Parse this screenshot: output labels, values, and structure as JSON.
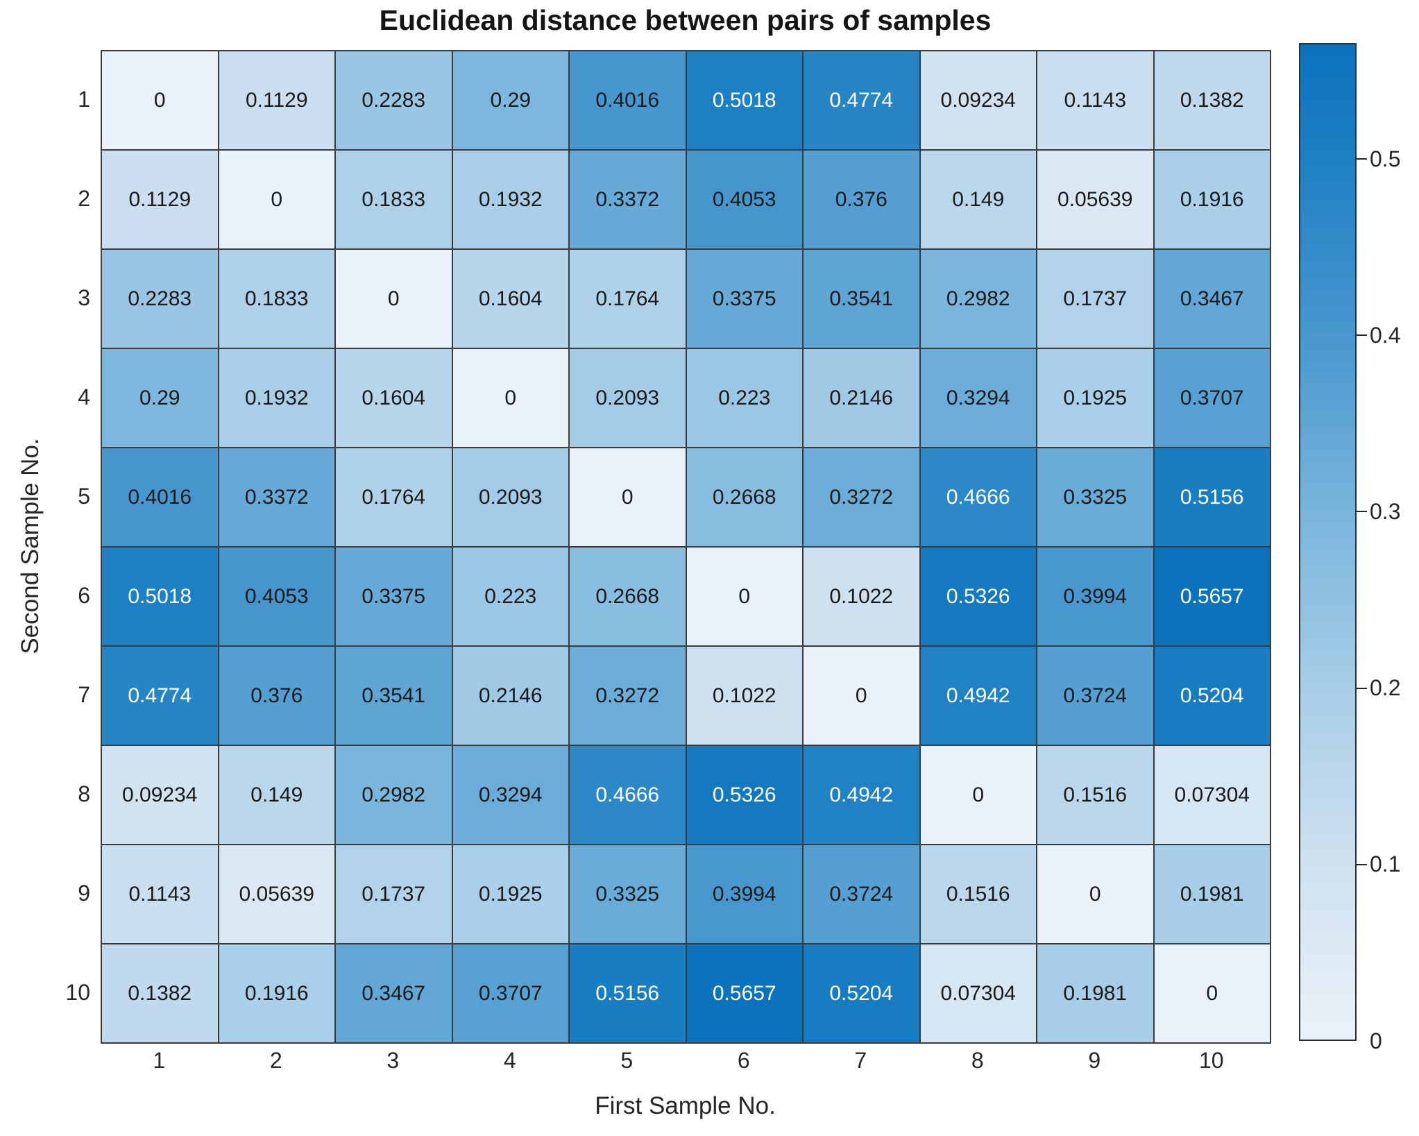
{
  "chart_data": {
    "type": "heatmap",
    "title": "Euclidean distance between pairs of samples",
    "xlabel": "First Sample No.",
    "ylabel": "Second Sample No.",
    "x_categories": [
      "1",
      "2",
      "3",
      "4",
      "5",
      "6",
      "7",
      "8",
      "9",
      "10"
    ],
    "y_categories": [
      "1",
      "2",
      "3",
      "4",
      "5",
      "6",
      "7",
      "8",
      "9",
      "10"
    ],
    "values": [
      [
        0,
        0.1129,
        0.2283,
        0.29,
        0.4016,
        0.5018,
        0.4774,
        0.09234,
        0.1143,
        0.1382
      ],
      [
        0.1129,
        0,
        0.1833,
        0.1932,
        0.3372,
        0.4053,
        0.376,
        0.149,
        0.05639,
        0.1916
      ],
      [
        0.2283,
        0.1833,
        0,
        0.1604,
        0.1764,
        0.3375,
        0.3541,
        0.2982,
        0.1737,
        0.3467
      ],
      [
        0.29,
        0.1932,
        0.1604,
        0,
        0.2093,
        0.223,
        0.2146,
        0.3294,
        0.1925,
        0.3707
      ],
      [
        0.4016,
        0.3372,
        0.1764,
        0.2093,
        0,
        0.2668,
        0.3272,
        0.4666,
        0.3325,
        0.5156
      ],
      [
        0.5018,
        0.4053,
        0.3375,
        0.223,
        0.2668,
        0,
        0.1022,
        0.5326,
        0.3994,
        0.5657
      ],
      [
        0.4774,
        0.376,
        0.3541,
        0.2146,
        0.3272,
        0.1022,
        0,
        0.4942,
        0.3724,
        0.5204
      ],
      [
        0.09234,
        0.149,
        0.2982,
        0.3294,
        0.4666,
        0.5326,
        0.4942,
        0,
        0.1516,
        0.07304
      ],
      [
        0.1143,
        0.05639,
        0.1737,
        0.1925,
        0.3325,
        0.3994,
        0.3724,
        0.1516,
        0,
        0.1981
      ],
      [
        0.1382,
        0.1916,
        0.3467,
        0.3707,
        0.5156,
        0.5657,
        0.5204,
        0.07304,
        0.1981,
        0
      ]
    ],
    "cell_labels": [
      [
        "0",
        "0.1129",
        "0.2283",
        "0.29",
        "0.4016",
        "0.5018",
        "0.4774",
        "0.09234",
        "0.1143",
        "0.1382"
      ],
      [
        "0.1129",
        "0",
        "0.1833",
        "0.1932",
        "0.3372",
        "0.4053",
        "0.376",
        "0.149",
        "0.05639",
        "0.1916"
      ],
      [
        "0.2283",
        "0.1833",
        "0",
        "0.1604",
        "0.1764",
        "0.3375",
        "0.3541",
        "0.2982",
        "0.1737",
        "0.3467"
      ],
      [
        "0.29",
        "0.1932",
        "0.1604",
        "0",
        "0.2093",
        "0.223",
        "0.2146",
        "0.3294",
        "0.1925",
        "0.3707"
      ],
      [
        "0.4016",
        "0.3372",
        "0.1764",
        "0.2093",
        "0",
        "0.2668",
        "0.3272",
        "0.4666",
        "0.3325",
        "0.5156"
      ],
      [
        "0.5018",
        "0.4053",
        "0.3375",
        "0.223",
        "0.2668",
        "0",
        "0.1022",
        "0.5326",
        "0.3994",
        "0.5657"
      ],
      [
        "0.4774",
        "0.376",
        "0.3541",
        "0.2146",
        "0.3272",
        "0.1022",
        "0",
        "0.4942",
        "0.3724",
        "0.5204"
      ],
      [
        "0.09234",
        "0.149",
        "0.2982",
        "0.3294",
        "0.4666",
        "0.5326",
        "0.4942",
        "0",
        "0.1516",
        "0.07304"
      ],
      [
        "0.1143",
        "0.05639",
        "0.1737",
        "0.1925",
        "0.3325",
        "0.3994",
        "0.3724",
        "0.1516",
        "0",
        "0.1981"
      ],
      [
        "0.1382",
        "0.1916",
        "0.3467",
        "0.3707",
        "0.5156",
        "0.5657",
        "0.5204",
        "0.07304",
        "0.1981",
        "0"
      ]
    ],
    "colorbar": {
      "position": "right",
      "vmin": 0,
      "vmax": 0.5657,
      "ticks": [
        {
          "value": 0,
          "label": "0"
        },
        {
          "value": 0.1,
          "label": "0.1"
        },
        {
          "value": 0.2,
          "label": "0.2"
        },
        {
          "value": 0.3,
          "label": "0.3"
        },
        {
          "value": 0.4,
          "label": "0.4"
        },
        {
          "value": 0.5,
          "label": "0.5"
        }
      ]
    },
    "colormap_stops": [
      {
        "value": 0,
        "color": "#eaf2f9"
      },
      {
        "value": 0.1,
        "color": "#cfe1f0"
      },
      {
        "value": 0.2,
        "color": "#a7cde7"
      },
      {
        "value": 0.3,
        "color": "#79b5dc"
      },
      {
        "value": 0.4,
        "color": "#4897ce"
      },
      {
        "value": 0.5,
        "color": "#1e80c4"
      },
      {
        "value": 0.5657,
        "color": "#0b72bc"
      }
    ],
    "grid_on": true
  },
  "style": {
    "grid_line_color": "#3b3b3b",
    "cell_text_color": "#1a1a1a",
    "cell_text_color_high": "#ffffff",
    "white_text_threshold": 0.45,
    "tick_label_color": "#262626",
    "title_color": "#151515",
    "background_color": "#ffffff"
  }
}
